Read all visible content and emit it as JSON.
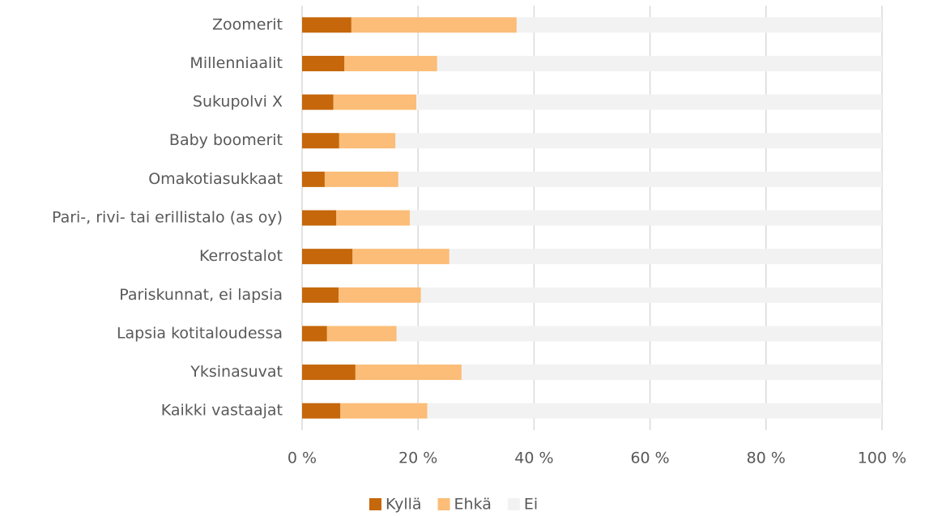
{
  "chart_data": {
    "type": "bar",
    "orientation": "horizontal",
    "stacked": true,
    "categories": [
      "Zoomerit",
      "Millenniaalit",
      "Sukupolvi X",
      "Baby boomerit",
      "Omakotiasukkaat",
      "Pari-, rivi- tai erillistalo (as oy)",
      "Kerrostalot",
      "Pariskunnat, ei lapsia",
      "Lapsia kotitaloudessa",
      "Yksinasuvat",
      "Kaikki vastaajat"
    ],
    "series": [
      {
        "name": "Kyllä",
        "color": "#c5670a",
        "values": [
          8.5,
          7.3,
          5.4,
          6.4,
          3.9,
          5.9,
          8.7,
          6.3,
          4.3,
          9.2,
          6.6
        ]
      },
      {
        "name": "Ehkä",
        "color": "#fbbd77",
        "values": [
          28.5,
          16.0,
          14.3,
          9.7,
          12.7,
          12.7,
          16.7,
          14.2,
          12.0,
          18.3,
          15.0
        ]
      },
      {
        "name": "Ei",
        "color": "#f2f2f2",
        "values": [
          63.0,
          76.7,
          80.3,
          83.9,
          83.4,
          81.4,
          74.6,
          79.5,
          83.7,
          72.5,
          78.4
        ]
      }
    ],
    "xlim": [
      0,
      100
    ],
    "xticks": [
      {
        "value": 0,
        "label": "0 %"
      },
      {
        "value": 20,
        "label": "20 %"
      },
      {
        "value": 40,
        "label": "40 %"
      },
      {
        "value": 60,
        "label": "60 %"
      },
      {
        "value": 80,
        "label": "80 %"
      },
      {
        "value": 100,
        "label": "100 %"
      }
    ],
    "grid": true,
    "legend": "bottom"
  }
}
